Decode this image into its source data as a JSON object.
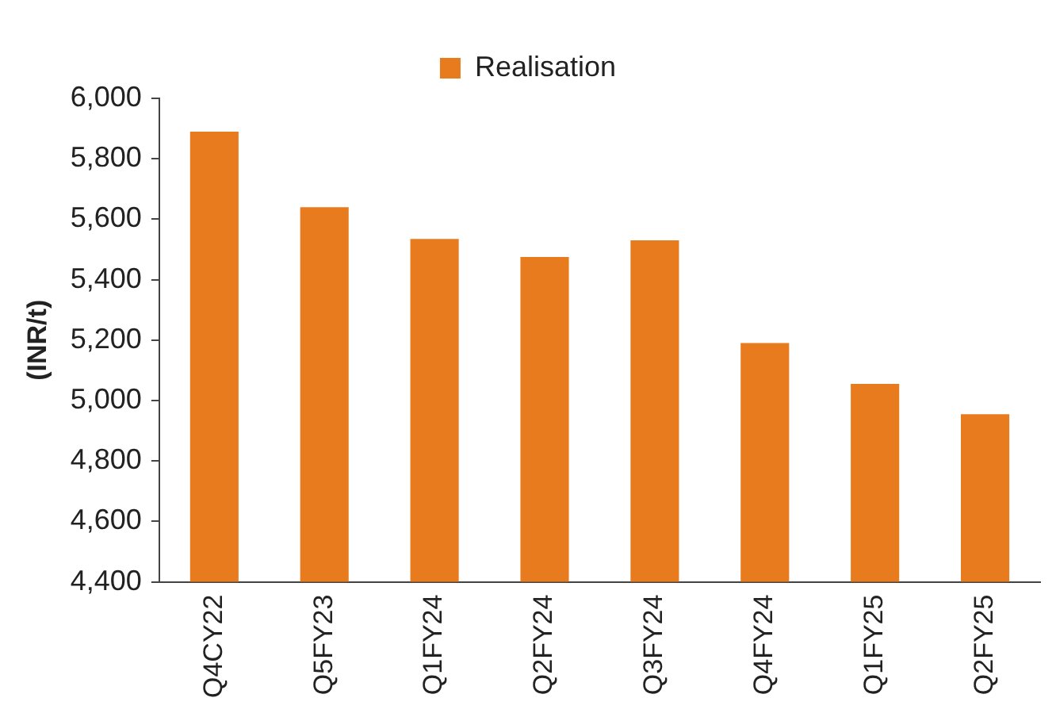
{
  "chart_data": {
    "type": "bar",
    "ylabel": "(INR/t)",
    "categories": [
      "Q4CY22",
      "Q5FY23",
      "Q1FY24",
      "Q2FY24",
      "Q3FY24",
      "Q4FY24",
      "Q1FY25",
      "Q2FY25"
    ],
    "series": [
      {
        "name": "Realisation",
        "color": "#e87b1e",
        "values": [
          5890,
          5640,
          5535,
          5475,
          5530,
          5190,
          5055,
          4955
        ]
      }
    ],
    "ylim": [
      4400,
      6000
    ],
    "yticks": [
      {
        "value": 4400,
        "label": "4,400"
      },
      {
        "value": 4600,
        "label": "4,600"
      },
      {
        "value": 4800,
        "label": "4,800"
      },
      {
        "value": 5000,
        "label": "5,000"
      },
      {
        "value": 5200,
        "label": "5,200"
      },
      {
        "value": 5400,
        "label": "5,400"
      },
      {
        "value": 5600,
        "label": "5,600"
      },
      {
        "value": 5800,
        "label": "5,800"
      },
      {
        "value": 6000,
        "label": "6,000"
      }
    ],
    "grid": false,
    "legend": "top"
  }
}
